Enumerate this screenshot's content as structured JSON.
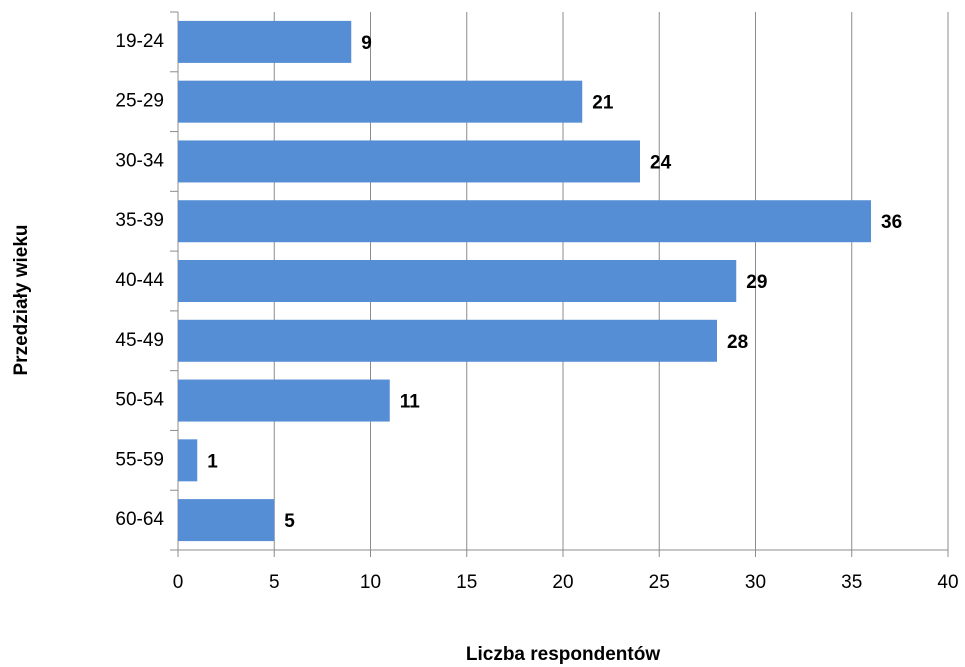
{
  "chart_data": {
    "type": "hbar",
    "categories": [
      "19-24",
      "25-29",
      "30-34",
      "35-39",
      "40-44",
      "45-49",
      "50-54",
      "55-59",
      "60-64"
    ],
    "values": [
      9,
      21,
      24,
      36,
      29,
      28,
      11,
      1,
      5
    ],
    "color": "#558ed5",
    "xlim": [
      0,
      40
    ],
    "xticks": [
      0,
      5,
      10,
      15,
      20,
      25,
      30,
      35,
      40
    ],
    "grid": true,
    "xlabel": "Liczba respondentów",
    "ylabel": "Przedziały wieku"
  }
}
